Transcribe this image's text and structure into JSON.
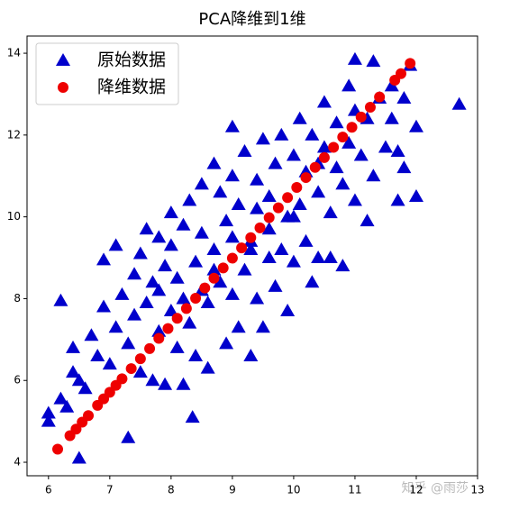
{
  "chart_data": {
    "type": "scatter",
    "title": "PCA降维到1维",
    "watermark": "知乎 @雨莎",
    "legend": "upper left",
    "xlim": [
      5.65,
      13.0
    ],
    "xticks": [
      6,
      7,
      8,
      9,
      10,
      11,
      12,
      13
    ],
    "ylim": [
      3.67,
      14.42
    ],
    "yticks": [
      4,
      6,
      8,
      10,
      12,
      14
    ],
    "series": [
      {
        "name": "原始数据",
        "color": "#0000cc",
        "marker": "triangle",
        "x": [
          6.0,
          6.0,
          6.2,
          6.3,
          6.4,
          6.4,
          6.5,
          6.5,
          6.6,
          6.2,
          6.7,
          6.8,
          6.9,
          6.9,
          7.0,
          7.1,
          7.1,
          7.2,
          7.3,
          7.3,
          7.4,
          7.4,
          7.5,
          7.5,
          7.6,
          7.6,
          7.7,
          7.7,
          7.8,
          7.8,
          7.9,
          7.9,
          8.0,
          8.0,
          8.0,
          8.1,
          8.1,
          8.2,
          8.2,
          8.3,
          8.3,
          8.35,
          8.4,
          8.4,
          8.5,
          8.5,
          8.6,
          8.6,
          8.7,
          8.7,
          8.8,
          8.8,
          8.9,
          8.9,
          9.0,
          9.0,
          9.0,
          9.1,
          9.1,
          9.2,
          9.2,
          9.3,
          9.3,
          9.4,
          9.4,
          9.5,
          9.5,
          9.6,
          9.6,
          9.7,
          9.7,
          9.8,
          9.8,
          9.9,
          9.9,
          10.0,
          10.0,
          10.1,
          10.1,
          10.2,
          10.2,
          10.3,
          10.3,
          10.4,
          10.4,
          10.5,
          10.5,
          10.6,
          10.6,
          10.7,
          10.7,
          10.8,
          10.8,
          10.9,
          10.9,
          11.0,
          11.0,
          11.0,
          11.1,
          11.2,
          11.2,
          11.3,
          11.3,
          11.4,
          11.5,
          11.6,
          11.6,
          11.7,
          11.7,
          11.8,
          11.9,
          12.0,
          12.0,
          12.7,
          11.8,
          8.5,
          9.3,
          9.0,
          10.0,
          8.2,
          7.8,
          9.6,
          10.4,
          9.4,
          8.7
        ],
        "values": [
          5.2,
          5.0,
          5.55,
          5.35,
          6.2,
          6.8,
          4.1,
          6.0,
          5.8,
          7.95,
          7.1,
          6.6,
          7.8,
          8.95,
          6.4,
          7.3,
          9.3,
          8.1,
          4.6,
          6.9,
          7.6,
          8.6,
          9.1,
          6.2,
          7.9,
          9.7,
          8.4,
          6.0,
          7.2,
          9.5,
          8.8,
          5.9,
          9.3,
          7.7,
          10.1,
          6.8,
          8.5,
          9.8,
          5.9,
          7.4,
          10.4,
          5.1,
          8.9,
          6.6,
          9.6,
          10.8,
          7.9,
          6.3,
          9.2,
          11.3,
          8.4,
          10.6,
          6.9,
          9.9,
          8.1,
          11.0,
          12.2,
          7.3,
          10.3,
          8.7,
          11.6,
          9.4,
          6.6,
          10.9,
          8.0,
          11.9,
          7.3,
          9.7,
          10.5,
          8.3,
          11.3,
          9.2,
          12.0,
          10.0,
          7.7,
          11.5,
          8.9,
          10.3,
          12.4,
          9.4,
          11.1,
          8.4,
          12.0,
          10.6,
          9.0,
          11.7,
          12.8,
          10.1,
          9.0,
          11.2,
          12.3,
          10.8,
          8.8,
          11.8,
          13.2,
          10.4,
          13.85,
          12.6,
          11.5,
          9.9,
          12.4,
          13.8,
          11.0,
          12.9,
          11.7,
          12.4,
          13.2,
          10.4,
          11.6,
          12.9,
          13.7,
          10.5,
          12.2,
          12.75,
          11.2,
          8.2,
          9.2,
          9.5,
          10.0,
          8.0,
          8.2,
          9.0,
          11.3,
          10.2,
          8.7
        ]
      },
      {
        "name": "降维数据",
        "color": "#ee0000",
        "marker": "circle",
        "x": [
          6.15,
          6.35,
          6.45,
          6.55,
          6.65,
          6.8,
          6.9,
          7.0,
          7.1,
          7.2,
          7.35,
          7.5,
          7.65,
          7.8,
          7.95,
          8.1,
          8.25,
          8.4,
          8.55,
          8.7,
          8.85,
          9.0,
          9.15,
          9.3,
          9.45,
          9.6,
          9.75,
          9.9,
          10.05,
          10.2,
          10.35,
          10.5,
          10.65,
          10.8,
          10.95,
          11.1,
          11.25,
          11.4,
          11.65,
          11.75,
          11.9
        ],
        "values": [
          4.32,
          4.65,
          4.81,
          4.98,
          5.14,
          5.39,
          5.55,
          5.71,
          5.88,
          6.04,
          6.29,
          6.53,
          6.78,
          7.03,
          7.27,
          7.52,
          7.76,
          8.01,
          8.26,
          8.5,
          8.75,
          8.99,
          9.24,
          9.49,
          9.73,
          9.98,
          10.22,
          10.47,
          10.72,
          10.96,
          11.21,
          11.45,
          11.7,
          11.95,
          12.19,
          12.44,
          12.68,
          12.93,
          13.34,
          13.5,
          13.75
        ]
      }
    ]
  }
}
